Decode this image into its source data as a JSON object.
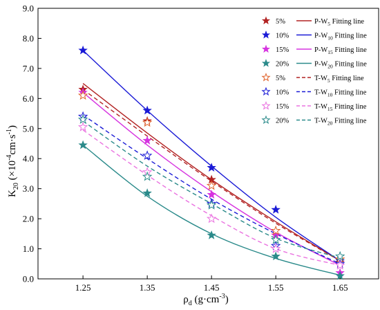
{
  "chart_data": {
    "type": "scatter",
    "xlabel": "ρd (g·cm-3)",
    "ylabel": "K20 (×10-4cm·s-1)",
    "xlim": [
      1.18,
      1.71
    ],
    "ylim": [
      0,
      9
    ],
    "xticks": [
      1.25,
      1.35,
      1.45,
      1.55,
      1.65
    ],
    "xtick_labels": [
      "1.25",
      "1.35",
      "1.45",
      "1.55",
      "1.65"
    ],
    "yticks": [
      0,
      1,
      2,
      3,
      4,
      5,
      6,
      7,
      8,
      9
    ],
    "ytick_labels": [
      "0.0",
      "1.0",
      "2.0",
      "3.0",
      "4.0",
      "5.0",
      "6.0",
      "7.0",
      "8.0",
      "9.0"
    ],
    "x": [
      1.25,
      1.35,
      1.45,
      1.55,
      1.65
    ],
    "grid": false,
    "legend_position": "top-right",
    "series": [
      {
        "name": "5%",
        "group": "P",
        "marker": "filled-star",
        "color": "#b22222",
        "values": [
          6.3,
          5.25,
          3.3,
          1.45,
          0.55
        ]
      },
      {
        "name": "10%",
        "group": "P",
        "marker": "filled-star",
        "color": "#1a1ad6",
        "values": [
          7.6,
          5.6,
          3.7,
          2.3,
          0.6
        ]
      },
      {
        "name": "15%",
        "group": "P",
        "marker": "filled-star",
        "color": "#d633e0",
        "values": [
          6.2,
          4.6,
          2.8,
          1.45,
          0.2
        ]
      },
      {
        "name": "20%",
        "group": "P",
        "marker": "filled-star",
        "color": "#2a8a8a",
        "values": [
          4.45,
          2.85,
          1.45,
          0.75,
          0.1
        ]
      },
      {
        "name": "5%",
        "group": "T",
        "marker": "hollow-star",
        "color": "#e0622a",
        "values": [
          6.1,
          5.2,
          3.1,
          1.6,
          0.65
        ]
      },
      {
        "name": "10%",
        "group": "T",
        "marker": "hollow-star",
        "color": "#1a1ad6",
        "values": [
          5.4,
          4.1,
          2.5,
          1.1,
          0.5
        ]
      },
      {
        "name": "15%",
        "group": "T",
        "marker": "hollow-star",
        "color": "#ea72e0",
        "values": [
          5.05,
          3.55,
          2.0,
          1.0,
          0.45
        ]
      },
      {
        "name": "20%",
        "group": "T",
        "marker": "hollow-star",
        "color": "#2a8a8a",
        "values": [
          5.3,
          3.4,
          2.45,
          1.3,
          0.75
        ]
      }
    ],
    "fitting_lines": [
      {
        "series_index": 0,
        "style": "solid",
        "color": "#b22222",
        "values": [
          6.5,
          4.85,
          3.3,
          1.9,
          0.6
        ]
      },
      {
        "series_index": 1,
        "style": "solid",
        "color": "#1a1ad6",
        "values": [
          7.6,
          5.6,
          3.75,
          2.05,
          0.6
        ]
      },
      {
        "series_index": 2,
        "style": "solid",
        "color": "#d633e0",
        "values": [
          6.2,
          4.45,
          2.9,
          1.55,
          0.45
        ]
      },
      {
        "series_index": 3,
        "style": "solid",
        "color": "#2a8a8a",
        "values": [
          4.45,
          2.75,
          1.5,
          0.68,
          0.12
        ]
      },
      {
        "series_index": 4,
        "style": "dashed",
        "color": "#b22222",
        "values": [
          6.3,
          4.75,
          3.25,
          1.85,
          0.6
        ]
      },
      {
        "series_index": 5,
        "style": "dashed",
        "color": "#1a1ad6",
        "values": [
          5.45,
          4.0,
          2.65,
          1.5,
          0.5
        ]
      },
      {
        "series_index": 6,
        "style": "dashed",
        "color": "#ea72e0",
        "values": [
          4.95,
          3.45,
          2.1,
          1.0,
          0.45
        ]
      },
      {
        "series_index": 7,
        "style": "dashed",
        "color": "#2a8a8a",
        "values": [
          5.25,
          3.75,
          2.5,
          1.35,
          0.7
        ]
      }
    ],
    "legend": [
      {
        "marker_label": "5%",
        "line_prefix": "P-W",
        "line_sub": "5",
        "line_suffix": " Fitting line"
      },
      {
        "marker_label": "10%",
        "line_prefix": "P-W",
        "line_sub": "10",
        "line_suffix": " Fitting line"
      },
      {
        "marker_label": "15%",
        "line_prefix": "P-W",
        "line_sub": "15",
        "line_suffix": " Fitting line"
      },
      {
        "marker_label": "20%",
        "line_prefix": "P-W",
        "line_sub": "20",
        "line_suffix": " Fitting line"
      },
      {
        "marker_label": "5%",
        "line_prefix": "T-W",
        "line_sub": "5",
        "line_suffix": " Fitting line"
      },
      {
        "marker_label": "10%",
        "line_prefix": "T-W",
        "line_sub": "10",
        "line_suffix": " Fitting line"
      },
      {
        "marker_label": "15%",
        "line_prefix": "T-W",
        "line_sub": "15",
        "line_suffix": " Fitting line"
      },
      {
        "marker_label": "20%",
        "line_prefix": "T-W",
        "line_sub": "20",
        "line_suffix": " Fitting line"
      }
    ],
    "axis_titles": {
      "x_main": "ρ",
      "x_sub": "d",
      "x_unit_pre": " (g·cm",
      "x_unit_sup": "-3",
      "x_unit_post": ")",
      "y_main": "K",
      "y_sub": "20",
      "y_unit_pre": " (×10",
      "y_exp1": "-4",
      "y_unit_mid": "cm·s",
      "y_exp2": "-1",
      "y_unit_post": ")"
    }
  }
}
